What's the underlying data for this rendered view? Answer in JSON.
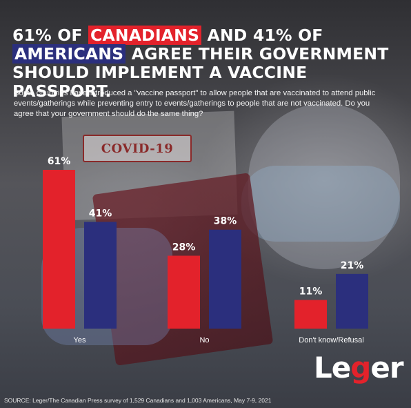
{
  "title": {
    "part1": "61% of ",
    "canadians": "Canadians",
    "part2": " and 41% of ",
    "americans": "Americans",
    "part3": " agree their government should implement a vaccine passport."
  },
  "question": "Some countries have introduced a \"vaccine passport\" to allow people that are vaccinated to attend public events/gatherings while preventing entry to events/gatherings to people that are not vaccinated. Do you agree that your government should do the same thing?",
  "stamp_text": "COVID-19",
  "logo": {
    "l": "Le",
    "g": "g",
    "r": "er",
    "full": "Leger"
  },
  "source": "SOURCE: Leger/The Canadian Press survey of 1,529 Canadians and 1,003 Americans, May 7-9, 2021",
  "colors": {
    "canadians": "#e3222b",
    "americans": "#2b2f7d"
  },
  "chart_data": {
    "type": "bar",
    "title": "",
    "xlabel": "",
    "ylabel": "",
    "ylim": [
      0,
      61
    ],
    "grid": false,
    "categories": [
      "Yes",
      "No",
      "Don't know/Refusal"
    ],
    "series": [
      {
        "values": [
          61,
          28,
          11
        ],
        "labels": [
          "61%",
          "28%",
          "11%"
        ],
        "color": "#e3222b"
      },
      {
        "values": [
          41,
          38,
          21
        ],
        "labels": [
          "41%",
          "38%",
          "21%"
        ],
        "color": "#2b2f7d"
      }
    ]
  }
}
